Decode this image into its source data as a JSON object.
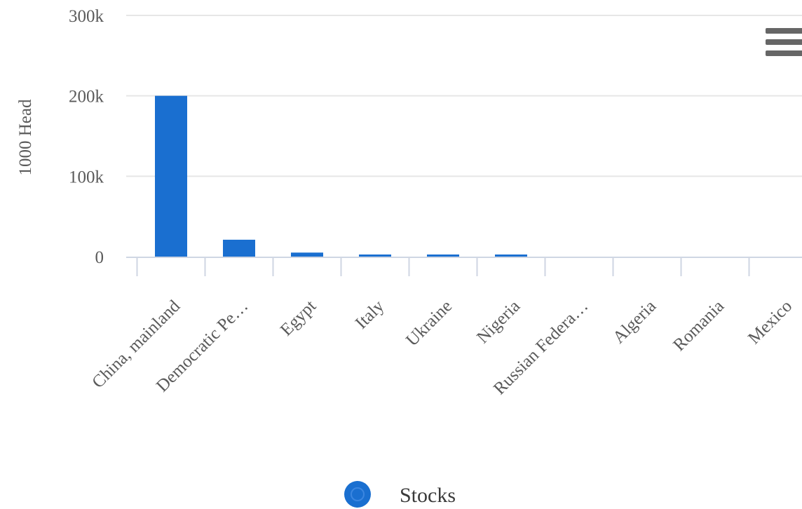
{
  "colors": {
    "bar": "#1a6fd0",
    "grid": "#e6e6e6",
    "axis": "#cfd6e3",
    "menu": "#666666",
    "text": "#5a5a5a"
  },
  "menu": {
    "icon": "hamburger-menu-icon"
  },
  "chart_data": {
    "type": "bar",
    "title": "",
    "xlabel": "",
    "ylabel": "1000 Head",
    "ylim": [
      0,
      300000
    ],
    "yticks": [
      {
        "value": 0,
        "label": "0"
      },
      {
        "value": 100000,
        "label": "100k"
      },
      {
        "value": 200000,
        "label": "200k"
      },
      {
        "value": 300000,
        "label": "300k"
      }
    ],
    "grid": true,
    "legend_position": "bottom-center",
    "categories": [
      "China, mainland",
      "Democratic Pe…",
      "Egypt",
      "Italy",
      "Ukraine",
      "Nigeria",
      "Russian Federa…",
      "Algeria",
      "Romania",
      "Mexico"
    ],
    "series": [
      {
        "name": "Stocks",
        "values": [
          200000,
          21000,
          5000,
          2000,
          1800,
          2500,
          0,
          0,
          0,
          0
        ]
      }
    ]
  }
}
